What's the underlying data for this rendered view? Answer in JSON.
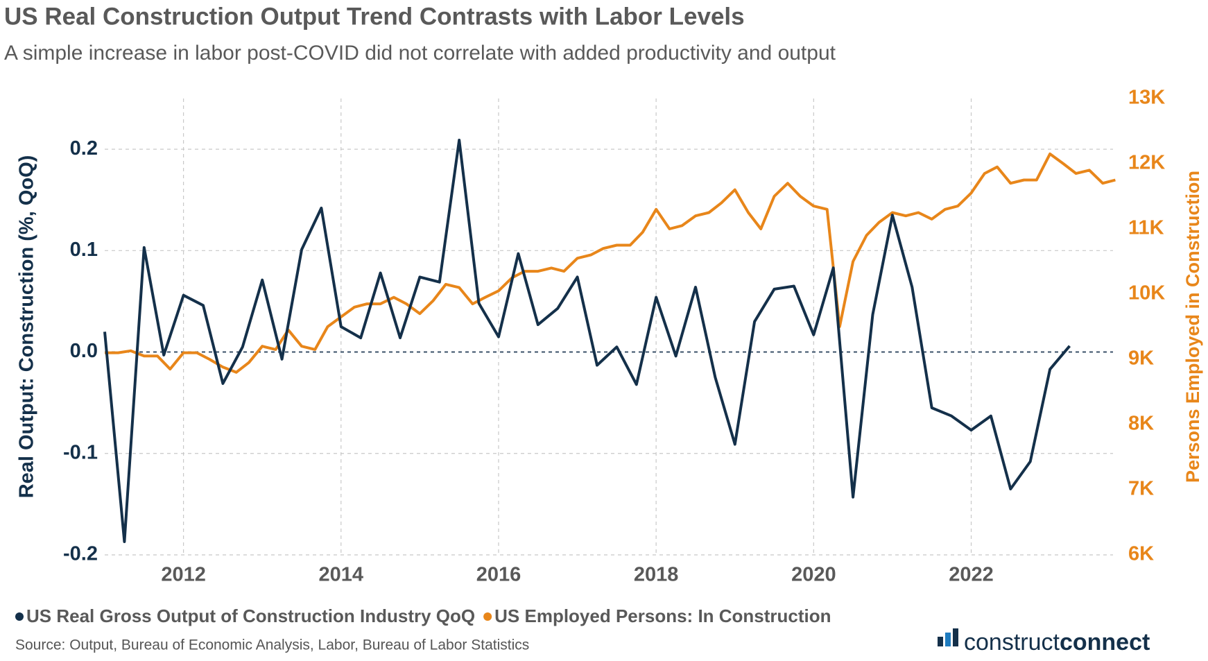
{
  "chart_data": {
    "type": "line",
    "title": "US Real Construction Output Trend Contrasts with Labor Levels",
    "subtitle": "A simple increase in labor post-COVID did not correlate with added productivity and output",
    "ylabel": "Real Output: Construction (%, QoQ)",
    "y2label": "Persons Employed in Construction",
    "source": "Source: Output, Bureau of Economic Analysis, Labor, Bureau of Labor Statistics",
    "brand": [
      "construct",
      "connect"
    ],
    "xlim": [
      2011,
      2023.8
    ],
    "xticks": [
      2012,
      2014,
      2016,
      2018,
      2020,
      2022
    ],
    "ylim": [
      -0.2,
      0.25
    ],
    "yticks": [
      -0.2,
      -0.1,
      {
        "value": 0,
        "label": "0.0"
      },
      0.1,
      0.2
    ],
    "y2lim": [
      6000,
      13000
    ],
    "y2ticks": [
      {
        "value": 6000,
        "label": "6K"
      },
      {
        "value": 7000,
        "label": "7K"
      },
      {
        "value": 8000,
        "label": "8K"
      },
      {
        "value": 9000,
        "label": "9K"
      },
      {
        "value": 10000,
        "label": "10K"
      },
      {
        "value": 11000,
        "label": "11K"
      },
      {
        "value": 12000,
        "label": "12K"
      },
      {
        "value": 13000,
        "label": "13K"
      }
    ],
    "grid": true,
    "series": [
      {
        "name": "US Real Gross Output of Construction Industry QoQ",
        "color": "#14304a",
        "x": [
          2011,
          2011.25,
          2011.5,
          2011.75,
          2012,
          2012.25,
          2012.5,
          2012.75,
          2013,
          2013.25,
          2013.5,
          2013.75,
          2014,
          2014.25,
          2014.5,
          2014.75,
          2015,
          2015.25,
          2015.5,
          2015.75,
          2016,
          2016.25,
          2016.5,
          2016.75,
          2017,
          2017.25,
          2017.5,
          2017.75,
          2018,
          2018.25,
          2018.5,
          2018.75,
          2019,
          2019.25,
          2019.5,
          2019.75,
          2020,
          2020.25,
          2020.5,
          2020.75,
          2021,
          2021.25,
          2021.5,
          2021.75,
          2022,
          2022.25,
          2022.5,
          2022.75,
          2023,
          2023.25
        ],
        "values": [
          0.02,
          -0.187,
          0.103,
          -0.003,
          0.056,
          0.046,
          -0.031,
          0.005,
          0.071,
          -0.007,
          0.101,
          0.142,
          0.025,
          0.014,
          0.078,
          0.014,
          0.074,
          0.069,
          0.209,
          0.048,
          0.015,
          0.097,
          0.027,
          0.043,
          0.074,
          -0.013,
          0.005,
          -0.032,
          0.054,
          -0.004,
          0.064,
          -0.025,
          -0.091,
          0.03,
          0.062,
          0.065,
          0.017,
          0.083,
          -0.143,
          0.037,
          0.135,
          0.064,
          -0.055,
          -0.063,
          -0.077,
          -0.063,
          -0.135,
          -0.108,
          -0.017,
          0.006
        ]
      },
      {
        "name": "US Employed Persons: In Construction",
        "color": "#e8861a",
        "axis": "y2",
        "x": [
          2011,
          2011.17,
          2011.33,
          2011.5,
          2011.67,
          2011.83,
          2012,
          2012.17,
          2012.33,
          2012.5,
          2012.67,
          2012.83,
          2013,
          2013.17,
          2013.33,
          2013.5,
          2013.67,
          2013.83,
          2014,
          2014.17,
          2014.33,
          2014.5,
          2014.67,
          2014.83,
          2015,
          2015.17,
          2015.33,
          2015.5,
          2015.67,
          2015.83,
          2016,
          2016.17,
          2016.33,
          2016.5,
          2016.67,
          2016.83,
          2017,
          2017.17,
          2017.33,
          2017.5,
          2017.67,
          2017.83,
          2018,
          2018.17,
          2018.33,
          2018.5,
          2018.67,
          2018.83,
          2019,
          2019.17,
          2019.33,
          2019.5,
          2019.67,
          2019.83,
          2020,
          2020.17,
          2020.33,
          2020.5,
          2020.67,
          2020.83,
          2021,
          2021.17,
          2021.33,
          2021.5,
          2021.67,
          2021.83,
          2022,
          2022.17,
          2022.33,
          2022.5,
          2022.67,
          2022.83,
          2023,
          2023.17,
          2023.33,
          2023.5,
          2023.67,
          2023.83
        ],
        "values": [
          9100,
          9100,
          9130,
          9050,
          9050,
          8850,
          9100,
          9100,
          9000,
          8880,
          8800,
          8950,
          9200,
          9150,
          9450,
          9200,
          9150,
          9500,
          9650,
          9800,
          9850,
          9850,
          9950,
          9850,
          9700,
          9900,
          10150,
          10100,
          9850,
          9950,
          10050,
          10250,
          10350,
          10350,
          10400,
          10350,
          10550,
          10600,
          10700,
          10750,
          10750,
          10950,
          11300,
          11000,
          11050,
          11200,
          11250,
          11400,
          11600,
          11250,
          11000,
          11500,
          11700,
          11500,
          11350,
          11300,
          9500,
          10500,
          10900,
          11100,
          11250,
          11200,
          11250,
          11150,
          11300,
          11350,
          11550,
          11850,
          11950,
          11700,
          11750,
          11750,
          12150,
          12000,
          11850,
          11900,
          11700,
          11750
        ]
      }
    ]
  }
}
